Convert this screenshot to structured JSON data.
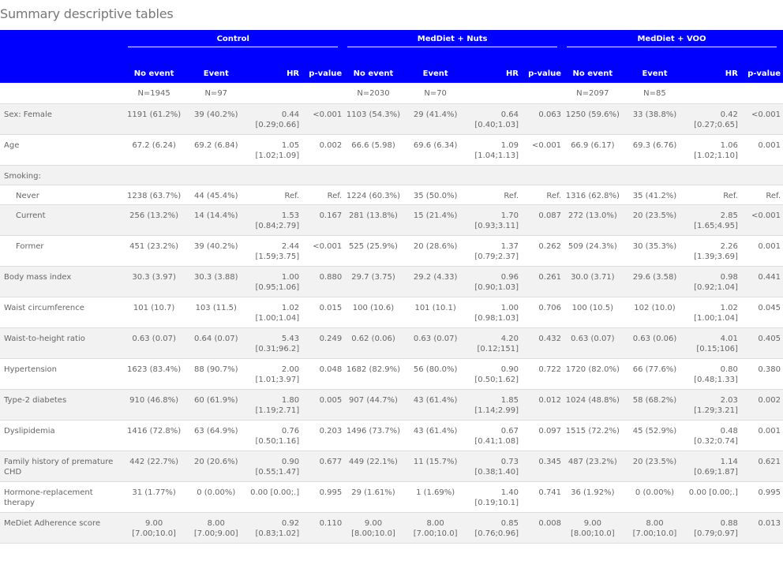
{
  "page_title": "Summary descriptive tables",
  "groups": [
    "Control",
    "MedDiet + Nuts",
    "MedDiet + VOO"
  ],
  "column_headers": {
    "no_event": "No event",
    "event": "Event",
    "hr": "HR",
    "pvalue": "p-value"
  },
  "n_row": [
    "N=1945",
    "N=97",
    "N=2030",
    "N=70",
    "N=2097",
    "N=85"
  ],
  "rows": [
    {
      "label": "Sex: Female",
      "indent": false,
      "alt": true,
      "cells": [
        "1191 (61.2%)",
        "39 (40.2%)",
        "0.44\n[0.29;0.66]",
        "<0.001",
        "1103 (54.3%)",
        "29 (41.4%)",
        "0.64\n[0.40;1.03]",
        "0.063",
        "1250 (59.6%)",
        "33 (38.8%)",
        "0.42\n[0.27;0.65]",
        "<0.001"
      ]
    },
    {
      "label": "Age",
      "indent": false,
      "alt": false,
      "cells": [
        "67.2 (6.24)",
        "69.2 (6.84)",
        "1.05\n[1.02;1.09]",
        "0.002",
        "66.6 (5.98)",
        "69.6 (6.34)",
        "1.09\n[1.04;1.13]",
        "<0.001",
        "66.9 (6.17)",
        "69.3 (6.76)",
        "1.06\n[1.02;1.10]",
        "0.001"
      ]
    },
    {
      "label": "Smoking:",
      "indent": false,
      "alt": true,
      "cells": [
        "",
        "",
        "",
        "",
        "",
        "",
        "",
        "",
        "",
        "",
        "",
        ""
      ]
    },
    {
      "label": "Never",
      "indent": true,
      "alt": false,
      "cells": [
        "1238 (63.7%)",
        "44 (45.4%)",
        "Ref.",
        "Ref.",
        "1224 (60.3%)",
        "35 (50.0%)",
        "Ref.",
        "Ref.",
        "1316 (62.8%)",
        "35 (41.2%)",
        "Ref.",
        "Ref."
      ]
    },
    {
      "label": "Current",
      "indent": true,
      "alt": true,
      "cells": [
        "256 (13.2%)",
        "14 (14.4%)",
        "1.53\n[0.84;2.79]",
        "0.167",
        "281 (13.8%)",
        "15 (21.4%)",
        "1.70\n[0.93;3.11]",
        "0.087",
        "272 (13.0%)",
        "20 (23.5%)",
        "2.85\n[1.65;4.95]",
        "<0.001"
      ]
    },
    {
      "label": "Former",
      "indent": true,
      "alt": false,
      "cells": [
        "451 (23.2%)",
        "39 (40.2%)",
        "2.44\n[1.59;3.75]",
        "<0.001",
        "525 (25.9%)",
        "20 (28.6%)",
        "1.37\n[0.79;2.37]",
        "0.262",
        "509 (24.3%)",
        "30 (35.3%)",
        "2.26\n[1.39;3.69]",
        "0.001"
      ]
    },
    {
      "label": "Body mass index",
      "indent": false,
      "alt": true,
      "cells": [
        "30.3 (3.97)",
        "30.3 (3.88)",
        "1.00\n[0.95;1.06]",
        "0.880",
        "29.7 (3.75)",
        "29.2 (4.33)",
        "0.96\n[0.90;1.03]",
        "0.261",
        "30.0 (3.71)",
        "29.6 (3.58)",
        "0.98\n[0.92;1.04]",
        "0.441"
      ]
    },
    {
      "label": "Waist circumference",
      "indent": false,
      "alt": false,
      "cells": [
        "101 (10.7)",
        "103 (11.5)",
        "1.02\n[1.00;1.04]",
        "0.015",
        "100 (10.6)",
        "101 (10.1)",
        "1.00\n[0.98;1.03]",
        "0.706",
        "100 (10.5)",
        "102 (10.0)",
        "1.02\n[1.00;1.04]",
        "0.045"
      ]
    },
    {
      "label": "Waist-to-height ratio",
      "indent": false,
      "alt": true,
      "cells": [
        "0.63 (0.07)",
        "0.64 (0.07)",
        "5.43\n[0.31;96.2]",
        "0.249",
        "0.62 (0.06)",
        "0.63 (0.07)",
        "4.20\n[0.12;151]",
        "0.432",
        "0.63 (0.07)",
        "0.63 (0.06)",
        "4.01\n[0.15;106]",
        "0.405"
      ]
    },
    {
      "label": "Hypertension",
      "indent": false,
      "alt": false,
      "cells": [
        "1623 (83.4%)",
        "88 (90.7%)",
        "2.00\n[1.01;3.97]",
        "0.048",
        "1682 (82.9%)",
        "56 (80.0%)",
        "0.90\n[0.50;1.62]",
        "0.722",
        "1720 (82.0%)",
        "66 (77.6%)",
        "0.80\n[0.48;1.33]",
        "0.380"
      ]
    },
    {
      "label": "Type-2 diabetes",
      "indent": false,
      "alt": true,
      "cells": [
        "910 (46.8%)",
        "60 (61.9%)",
        "1.80\n[1.19;2.71]",
        "0.005",
        "907 (44.7%)",
        "43 (61.4%)",
        "1.85\n[1.14;2.99]",
        "0.012",
        "1024 (48.8%)",
        "58 (68.2%)",
        "2.03\n[1.29;3.21]",
        "0.002"
      ]
    },
    {
      "label": "Dyslipidemia",
      "indent": false,
      "alt": false,
      "cells": [
        "1416 (72.8%)",
        "63 (64.9%)",
        "0.76\n[0.50;1.16]",
        "0.203",
        "1496 (73.7%)",
        "43 (61.4%)",
        "0.67\n[0.41;1.08]",
        "0.097",
        "1515 (72.2%)",
        "45 (52.9%)",
        "0.48\n[0.32;0.74]",
        "0.001"
      ]
    },
    {
      "label": "Family history of premature CHD",
      "indent": false,
      "alt": true,
      "cells": [
        "442 (22.7%)",
        "20 (20.6%)",
        "0.90\n[0.55;1.47]",
        "0.677",
        "449 (22.1%)",
        "11 (15.7%)",
        "0.73\n[0.38;1.40]",
        "0.345",
        "487 (23.2%)",
        "20 (23.5%)",
        "1.14\n[0.69;1.87]",
        "0.621"
      ]
    },
    {
      "label": "Hormone-replacement therapy",
      "indent": false,
      "alt": false,
      "cells": [
        "31 (1.77%)",
        "0 (0.00%)",
        "0.00 [0.00;.]",
        "0.995",
        "29 (1.61%)",
        "1 (1.69%)",
        "1.40\n[0.19;10.1]",
        "0.741",
        "36 (1.92%)",
        "0 (0.00%)",
        "0.00 [0.00;.]",
        "0.995"
      ]
    },
    {
      "label": "MeDiet Adherence score",
      "indent": false,
      "alt": true,
      "cells": [
        "9.00\n[7.00;10.0]",
        "8.00\n[7.00;9.00]",
        "0.92\n[0.83;1.02]",
        "0.110",
        "9.00\n[8.00;10.0]",
        "8.00\n[7.00;10.0]",
        "0.85\n[0.76;0.96]",
        "0.008",
        "9.00\n[8.00;10.0]",
        "8.00\n[7.00;10.0]",
        "0.88\n[0.79;0.97]",
        "0.013"
      ]
    }
  ]
}
